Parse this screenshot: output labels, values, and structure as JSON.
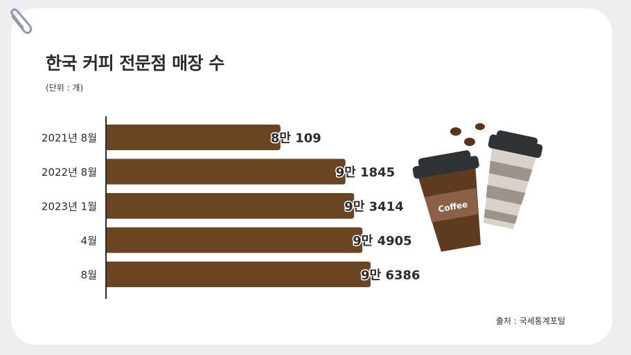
{
  "header": {
    "title": "한국 커피 전문점 매장 수",
    "unit": "(단위 : 개)"
  },
  "footer": {
    "source": "출처 : 국세통계포털"
  },
  "illustration": {
    "cup_label": "Coffee"
  },
  "colors": {
    "bar": "#6b4422",
    "axis": "#2b2b2b",
    "cup_front": "#5e3a1f",
    "cup_lid": "#2f3335"
  },
  "chart_data": {
    "type": "bar",
    "orientation": "horizontal",
    "categories": [
      "2021년 8월",
      "2022년 8월",
      "2023년 1월",
      "4월",
      "8월"
    ],
    "values": [
      80109,
      91845,
      93414,
      94905,
      96386
    ],
    "value_labels": [
      {
        "big": "8만",
        "small": "109"
      },
      {
        "big": "9만",
        "small": "1845"
      },
      {
        "big": "9만",
        "small": "3414"
      },
      {
        "big": "9만",
        "small": "4905"
      },
      {
        "big": "9만",
        "small": "6386"
      }
    ],
    "title": "한국 커피 전문점 매장 수",
    "xlabel": "",
    "ylabel": "",
    "grid": false
  }
}
